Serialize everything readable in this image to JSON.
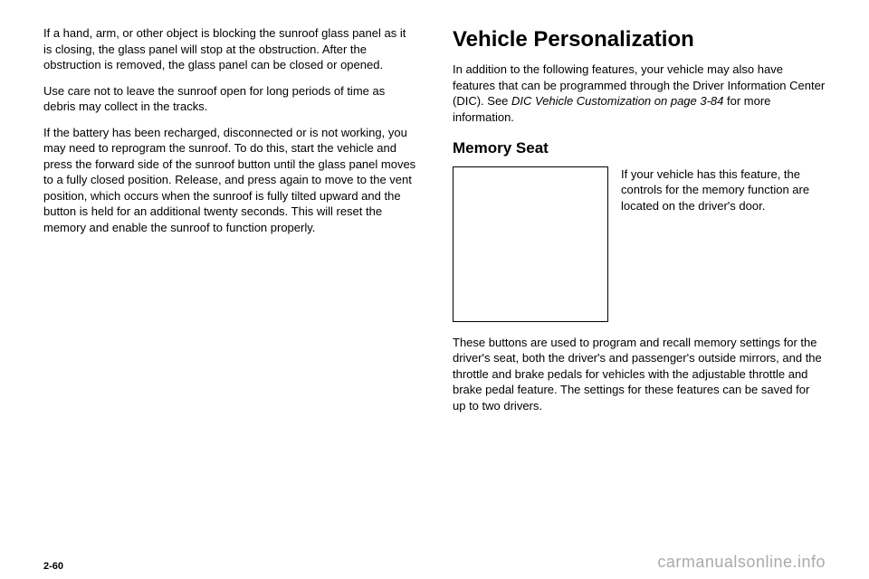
{
  "left": {
    "p1": "If a hand, arm, or other object is blocking the sunroof glass panel as it is closing, the glass panel will stop at the obstruction. After the obstruction is removed, the glass panel can be closed or opened.",
    "p2": "Use care not to leave the sunroof open for long periods of time as debris may collect in the tracks.",
    "p3": "If the battery has been recharged, disconnected or is not working, you may need to reprogram the sunroof. To do this, start the vehicle and press the forward side of the sunroof button until the glass panel moves to a fully closed position. Release, and press again to move to the vent position, which occurs when the sunroof is fully tilted upward and the button is held for an additional twenty seconds. This will reset the memory and enable the sunroof to function properly."
  },
  "right": {
    "heading": "Vehicle Personalization",
    "intro_a": "In addition to the following features, your vehicle may also have features that can be programmed through the Driver Information Center (DIC). See ",
    "intro_italic": "DIC Vehicle Customization on page 3-84",
    "intro_b": " for more information.",
    "sub_heading": "Memory Seat",
    "figure_caption": "If your vehicle has this feature, the controls for the memory function are located on the driver's door.",
    "p2": "These buttons are used to program and recall memory settings for the driver's seat, both the driver's and passenger's outside mirrors, and the throttle and brake pedals for vehicles with the adjustable throttle and brake pedal feature. The settings for these features can be saved for up to two drivers."
  },
  "footer": {
    "page_number": "2-60",
    "watermark": "carmanualsonline.info"
  }
}
